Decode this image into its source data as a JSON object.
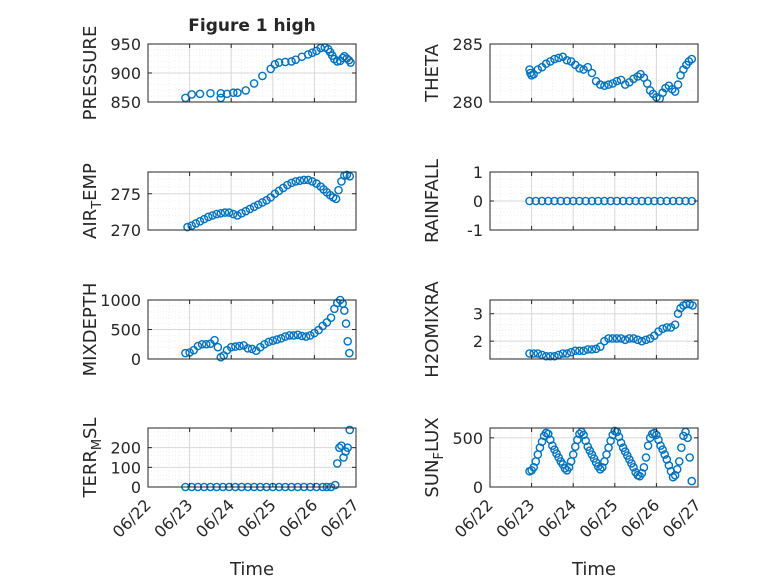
{
  "figure_title": "Figure 1 high",
  "colors": {
    "marker": "#0072BD",
    "axes": "#262626",
    "grid": "#d7d7d7",
    "minor_grid": "#ececec"
  },
  "chart_data": [
    {
      "type": "scatter",
      "ylabel": "PRESSURE",
      "ylabel_sub": "",
      "ylabel_tail": "",
      "title": "Figure 1 high",
      "ylim": [
        850,
        950
      ],
      "yticks": [
        850,
        900,
        950
      ],
      "yticklabels": [
        "850",
        "900",
        "950"
      ],
      "minor_step": 10,
      "x": [
        23.75,
        22.9,
        23.05,
        23.25,
        23.5,
        23.75,
        23.9,
        24.05,
        24.15,
        24.35,
        24.55,
        24.75,
        24.95,
        25.05,
        25.15,
        25.3,
        25.45,
        25.55,
        25.7,
        25.85,
        25.95,
        26.05,
        26.15,
        26.25,
        26.33,
        26.38,
        26.43,
        26.48,
        26.55,
        26.62,
        26.68,
        26.72,
        26.78,
        26.83,
        26.87
      ],
      "y": [
        857,
        857,
        863,
        864,
        865,
        865,
        864,
        866,
        866,
        870,
        882,
        895,
        907,
        915,
        918,
        919,
        920,
        923,
        928,
        932,
        935,
        938,
        943,
        944,
        941,
        936,
        930,
        924,
        920,
        921,
        926,
        929,
        925,
        922,
        918
      ]
    },
    {
      "type": "scatter",
      "ylabel": "THETA",
      "ylabel_sub": "",
      "ylabel_tail": "",
      "ylim": [
        280,
        285
      ],
      "yticks": [
        280,
        285
      ],
      "yticklabels": [
        "280",
        "285"
      ],
      "minor_step": 1,
      "x": [
        22.95,
        22.97,
        23.0,
        23.05,
        23.15,
        23.25,
        23.35,
        23.45,
        23.55,
        23.65,
        23.75,
        23.85,
        23.95,
        24.05,
        24.15,
        24.25,
        24.35,
        24.45,
        24.55,
        24.65,
        24.75,
        24.85,
        24.95,
        25.05,
        25.15,
        25.25,
        25.35,
        25.45,
        25.55,
        25.62,
        25.7,
        25.78,
        25.85,
        25.92,
        26.0,
        26.08,
        26.15,
        26.22,
        26.3,
        26.38,
        26.45,
        26.52,
        26.58,
        26.65,
        26.72,
        26.78,
        26.85
      ],
      "y": [
        282.8,
        282.5,
        282.3,
        282.4,
        282.8,
        283.0,
        283.3,
        283.5,
        283.7,
        283.8,
        283.9,
        283.6,
        283.5,
        283.2,
        282.9,
        282.8,
        283.0,
        282.5,
        281.8,
        281.5,
        281.4,
        281.5,
        281.6,
        281.8,
        281.9,
        281.5,
        281.7,
        282.0,
        282.2,
        282.4,
        282.1,
        281.6,
        281.0,
        280.7,
        280.4,
        280.3,
        280.8,
        281.2,
        281.4,
        281.1,
        280.9,
        281.5,
        282.3,
        282.8,
        283.2,
        283.5,
        283.7
      ]
    },
    {
      "type": "scatter",
      "ylabel": "AIR",
      "ylabel_sub": "T",
      "ylabel_tail": "EMP",
      "ylim": [
        270,
        278
      ],
      "yticks": [
        270,
        275
      ],
      "yticklabels": [
        "270",
        "275"
      ],
      "minor_step": 1,
      "x": [
        22.95,
        23.05,
        23.15,
        23.25,
        23.35,
        23.45,
        23.55,
        23.65,
        23.75,
        23.85,
        23.95,
        24.05,
        24.15,
        24.25,
        24.35,
        24.45,
        24.55,
        24.65,
        24.75,
        24.85,
        24.95,
        25.05,
        25.15,
        25.25,
        25.35,
        25.45,
        25.55,
        25.65,
        25.75,
        25.85,
        25.95,
        26.05,
        26.15,
        26.22,
        26.3,
        26.38,
        26.45,
        26.52,
        26.58,
        26.65,
        26.72,
        26.78,
        26.85
      ],
      "y": [
        270.4,
        270.6,
        270.9,
        271.2,
        271.5,
        271.8,
        272.0,
        272.2,
        272.3,
        272.4,
        272.4,
        272.2,
        272.0,
        272.3,
        272.6,
        272.9,
        273.2,
        273.5,
        273.8,
        274.1,
        274.5,
        275.0,
        275.4,
        275.8,
        276.2,
        276.5,
        276.7,
        276.8,
        276.9,
        276.9,
        276.7,
        276.4,
        276.0,
        275.6,
        275.2,
        274.8,
        274.5,
        274.3,
        275.5,
        276.7,
        277.5,
        277.6,
        277.4
      ]
    },
    {
      "type": "scatter",
      "ylabel": "RAINFALL",
      "ylabel_sub": "",
      "ylabel_tail": "",
      "ylim": [
        -1,
        1
      ],
      "yticks": [
        -1,
        0,
        1
      ],
      "yticklabels": [
        "-1",
        "0",
        "1"
      ],
      "minor_step": 0.25,
      "x": [
        22.95,
        23.1,
        23.25,
        23.4,
        23.55,
        23.7,
        23.85,
        24.0,
        24.15,
        24.3,
        24.45,
        24.6,
        24.75,
        24.9,
        25.05,
        25.2,
        25.35,
        25.5,
        25.65,
        25.8,
        25.95,
        26.1,
        26.25,
        26.4,
        26.55,
        26.7,
        26.85
      ],
      "y": [
        0,
        0,
        0,
        0,
        0,
        0,
        0,
        0,
        0,
        0,
        0,
        0,
        0,
        0,
        0,
        0,
        0,
        0,
        0,
        0,
        0,
        0,
        0,
        0,
        0,
        0,
        0
      ]
    },
    {
      "type": "scatter",
      "ylabel": "MIXDEPTH",
      "ylabel_sub": "",
      "ylabel_tail": "",
      "ylim": [
        0,
        1000
      ],
      "yticks": [
        0,
        500,
        1000
      ],
      "yticklabels": [
        "0",
        "500",
        "1000"
      ],
      "minor_step": 100,
      "x": [
        22.9,
        23.0,
        23.1,
        23.2,
        23.3,
        23.4,
        23.5,
        23.6,
        23.68,
        23.75,
        23.82,
        23.9,
        24.0,
        24.1,
        24.2,
        24.3,
        24.4,
        24.5,
        24.6,
        24.7,
        24.8,
        24.9,
        25.0,
        25.1,
        25.2,
        25.3,
        25.4,
        25.5,
        25.6,
        25.7,
        25.8,
        25.9,
        26.0,
        26.1,
        26.2,
        26.3,
        26.4,
        26.48,
        26.55,
        26.62,
        26.68,
        26.72,
        26.76,
        26.8,
        26.84
      ],
      "y": [
        100,
        110,
        150,
        220,
        250,
        250,
        260,
        320,
        200,
        30,
        60,
        150,
        200,
        210,
        220,
        230,
        180,
        170,
        140,
        200,
        250,
        290,
        310,
        330,
        350,
        380,
        400,
        400,
        410,
        390,
        380,
        400,
        440,
        490,
        560,
        620,
        700,
        850,
        950,
        1000,
        940,
        820,
        600,
        300,
        100
      ]
    },
    {
      "type": "scatter",
      "ylabel": "H2OMIXRA",
      "ylabel_sub": "",
      "ylabel_tail": "",
      "ylim": [
        1.35,
        3.5
      ],
      "yticks": [
        2,
        3
      ],
      "yticklabels": [
        "2",
        "3"
      ],
      "minor_step": 0.2,
      "x": [
        22.95,
        23.05,
        23.15,
        23.25,
        23.35,
        23.45,
        23.55,
        23.65,
        23.75,
        23.85,
        23.95,
        24.05,
        24.15,
        24.25,
        24.35,
        24.45,
        24.55,
        24.65,
        24.75,
        24.85,
        24.95,
        25.05,
        25.15,
        25.25,
        25.35,
        25.45,
        25.55,
        25.65,
        25.75,
        25.85,
        25.95,
        26.05,
        26.15,
        26.25,
        26.35,
        26.45,
        26.52,
        26.58,
        26.65,
        26.72,
        26.8,
        26.87
      ],
      "y": [
        1.55,
        1.55,
        1.55,
        1.5,
        1.45,
        1.45,
        1.45,
        1.5,
        1.55,
        1.55,
        1.6,
        1.65,
        1.65,
        1.65,
        1.7,
        1.7,
        1.72,
        1.8,
        2.0,
        2.1,
        2.1,
        2.1,
        2.1,
        2.05,
        2.1,
        2.1,
        2.05,
        2.0,
        2.05,
        2.1,
        2.2,
        2.35,
        2.45,
        2.5,
        2.5,
        2.6,
        3.0,
        3.2,
        3.3,
        3.35,
        3.35,
        3.3
      ]
    },
    {
      "type": "scatter",
      "ylabel": "TERR",
      "ylabel_sub": "M",
      "ylabel_tail": "SL",
      "ylim": [
        0,
        300
      ],
      "yticks": [
        0,
        100,
        200
      ],
      "yticklabels": [
        "0",
        "100",
        "200"
      ],
      "minor_step": 20,
      "x": [
        22.9,
        23.05,
        23.2,
        23.35,
        23.5,
        23.65,
        23.8,
        23.95,
        24.1,
        24.25,
        24.4,
        24.55,
        24.7,
        24.85,
        25.0,
        25.15,
        25.3,
        25.45,
        25.6,
        25.75,
        25.9,
        26.05,
        26.2,
        26.3,
        26.4,
        26.5,
        26.55,
        26.6,
        26.65,
        26.7,
        26.75,
        26.8,
        26.85
      ],
      "y": [
        0,
        0,
        0,
        0,
        0,
        0,
        0,
        0,
        0,
        0,
        0,
        0,
        0,
        0,
        0,
        0,
        0,
        0,
        0,
        0,
        0,
        0,
        0,
        0,
        0,
        10,
        120,
        200,
        210,
        150,
        180,
        200,
        290
      ]
    },
    {
      "type": "scatter",
      "ylabel": "SUN",
      "ylabel_sub": "F",
      "ylabel_tail": "LUX",
      "ylim": [
        0,
        600
      ],
      "yticks": [
        0,
        500
      ],
      "yticklabels": [
        "0",
        "500"
      ],
      "minor_step": 100,
      "x": [
        22.95,
        23.0,
        23.05,
        23.1,
        23.15,
        23.2,
        23.25,
        23.3,
        23.35,
        23.4,
        23.45,
        23.5,
        23.55,
        23.6,
        23.65,
        23.7,
        23.75,
        23.8,
        23.85,
        23.9,
        23.95,
        24.0,
        24.05,
        24.1,
        24.15,
        24.2,
        24.25,
        24.3,
        24.35,
        24.4,
        24.45,
        24.5,
        24.55,
        24.6,
        24.65,
        24.7,
        24.75,
        24.8,
        24.85,
        24.9,
        24.95,
        25.0,
        25.05,
        25.1,
        25.15,
        25.2,
        25.25,
        25.3,
        25.35,
        25.4,
        25.45,
        25.5,
        25.55,
        25.6,
        25.65,
        25.7,
        25.75,
        25.8,
        25.85,
        25.9,
        25.95,
        26.0,
        26.05,
        26.1,
        26.15,
        26.2,
        26.25,
        26.3,
        26.35,
        26.4,
        26.45,
        26.5,
        26.55,
        26.6,
        26.65,
        26.7,
        26.75,
        26.8,
        26.85
      ],
      "y": [
        160,
        170,
        200,
        260,
        330,
        400,
        460,
        520,
        550,
        540,
        480,
        420,
        380,
        340,
        300,
        260,
        230,
        190,
        170,
        200,
        260,
        330,
        410,
        480,
        540,
        560,
        530,
        470,
        410,
        370,
        330,
        290,
        250,
        210,
        180,
        200,
        260,
        330,
        400,
        470,
        530,
        570,
        560,
        510,
        450,
        400,
        360,
        320,
        280,
        240,
        200,
        150,
        120,
        110,
        140,
        200,
        300,
        420,
        500,
        540,
        550,
        530,
        480,
        420,
        380,
        330,
        280,
        220,
        160,
        100,
        120,
        180,
        260,
        400,
        520,
        560,
        500,
        300,
        60
      ]
    }
  ],
  "x_axis": {
    "label": "Time",
    "xlim": [
      22,
      27
    ],
    "ticks": [
      22,
      23,
      24,
      25,
      26,
      27
    ],
    "ticklabels": [
      "06/22",
      "06/23",
      "06/24",
      "06/25",
      "06/26",
      "06/27"
    ]
  }
}
